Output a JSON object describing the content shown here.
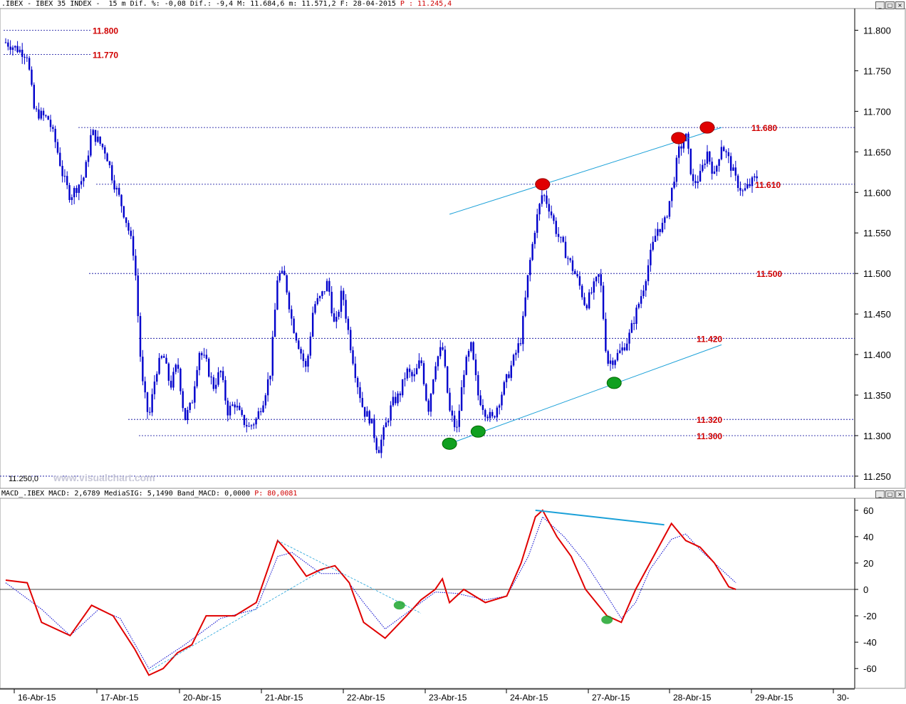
{
  "header": {
    "text": ".IBEX - IBEX 35 INDEX -  15 m Dif. %: -0,08 Dif.: -9,4 M: 11.684,6 m: 11.571,2 F: 28-04-2015 ",
    "red_text": "P : 11.245,4",
    "buttons": [
      "_",
      "□",
      "×"
    ]
  },
  "macd_header": {
    "text": "MACD_.IBEX MACD: 2,6789 MediaSIG: 5,1490 Band_MACD: 0,0000 ",
    "red_text": "P: 80,0081",
    "buttons": [
      "_",
      "□",
      "×"
    ]
  },
  "watermark": "www.visualchart.com",
  "low_label": "11.250,0",
  "colors": {
    "candles": "#0000cc",
    "levels": "#000099",
    "level_labels": "#d00000",
    "trendlines": "#1aa0d8",
    "macd": "#e00000",
    "signal": "#0000cc",
    "top_marker": "#e00000",
    "bottom_marker": "#10a020"
  },
  "chart_data": [
    {
      "type": "candlestick",
      "title": "IBEX 35 INDEX 15 m",
      "ylim": [
        11235,
        11825
      ],
      "y_ticks": [
        "11.800",
        "11.750",
        "11.700",
        "11.650",
        "11.600",
        "11.550",
        "11.500",
        "11.450",
        "11.400",
        "11.350",
        "11.300",
        "11.250"
      ],
      "x_ticks": [
        "16-Abr-15",
        "17-Abr-15",
        "20-Abr-15",
        "21-Abr-15",
        "22-Abr-15",
        "23-Abr-15",
        "24-Abr-15",
        "27-Abr-15",
        "28-Abr-15",
        "29-Abr-15",
        "30-"
      ],
      "close_path": [
        [
          0,
          11785
        ],
        [
          3,
          11770
        ],
        [
          4,
          11700
        ],
        [
          6,
          11690
        ],
        [
          7,
          11660
        ],
        [
          8,
          11620
        ],
        [
          9,
          11595
        ],
        [
          11,
          11620
        ],
        [
          12,
          11675
        ],
        [
          14,
          11650
        ],
        [
          15,
          11615
        ],
        [
          16,
          11590
        ],
        [
          17,
          11560
        ],
        [
          18,
          11520
        ],
        [
          19,
          11370
        ],
        [
          20,
          11320
        ],
        [
          21,
          11380
        ],
        [
          22,
          11400
        ],
        [
          23,
          11360
        ],
        [
          24,
          11390
        ],
        [
          25,
          11320
        ],
        [
          26,
          11340
        ],
        [
          27,
          11405
        ],
        [
          28,
          11390
        ],
        [
          29,
          11360
        ],
        [
          30,
          11380
        ],
        [
          31,
          11330
        ],
        [
          32,
          11340
        ],
        [
          33,
          11320
        ],
        [
          34,
          11310
        ],
        [
          35,
          11320
        ],
        [
          36,
          11345
        ],
        [
          37,
          11380
        ],
        [
          38,
          11500
        ],
        [
          39,
          11495
        ],
        [
          40,
          11440
        ],
        [
          41,
          11410
        ],
        [
          42,
          11380
        ],
        [
          43,
          11460
        ],
        [
          44,
          11470
        ],
        [
          45,
          11490
        ],
        [
          46,
          11430
        ],
        [
          47,
          11480
        ],
        [
          48,
          11420
        ],
        [
          49,
          11370
        ],
        [
          50,
          11330
        ],
        [
          51,
          11320
        ],
        [
          52,
          11280
        ],
        [
          53,
          11310
        ],
        [
          54,
          11340
        ],
        [
          55,
          11350
        ],
        [
          56,
          11380
        ],
        [
          57,
          11370
        ],
        [
          58,
          11395
        ],
        [
          59,
          11330
        ],
        [
          60,
          11390
        ],
        [
          61,
          11410
        ],
        [
          62,
          11330
        ],
        [
          63,
          11305
        ],
        [
          64,
          11380
        ],
        [
          65,
          11410
        ],
        [
          66,
          11350
        ],
        [
          67,
          11330
        ],
        [
          68,
          11320
        ],
        [
          69,
          11345
        ],
        [
          70,
          11370
        ],
        [
          71,
          11395
        ],
        [
          72,
          11420
        ],
        [
          73,
          11500
        ],
        [
          74,
          11560
        ],
        [
          75,
          11600
        ],
        [
          76,
          11580
        ],
        [
          77,
          11550
        ],
        [
          78,
          11530
        ],
        [
          79,
          11510
        ],
        [
          80,
          11490
        ],
        [
          81,
          11460
        ],
        [
          82,
          11480
        ],
        [
          83,
          11500
        ],
        [
          84,
          11390
        ],
        [
          85,
          11395
        ],
        [
          86,
          11405
        ],
        [
          87,
          11420
        ],
        [
          88,
          11450
        ],
        [
          89,
          11480
        ],
        [
          90,
          11520
        ],
        [
          91,
          11555
        ],
        [
          92,
          11560
        ],
        [
          93,
          11600
        ],
        [
          94,
          11650
        ],
        [
          95,
          11670
        ],
        [
          96,
          11610
        ],
        [
          97,
          11620
        ],
        [
          98,
          11650
        ],
        [
          99,
          11620
        ],
        [
          100,
          11660
        ],
        [
          101,
          11640
        ],
        [
          102,
          11615
        ],
        [
          103,
          11600
        ],
        [
          104,
          11610
        ],
        [
          105,
          11620
        ]
      ],
      "levels": [
        {
          "label": "11.800",
          "value": 11800
        },
        {
          "label": "11.770",
          "value": 11770
        },
        {
          "label": "11.680",
          "value": 11680
        },
        {
          "label": "11.610",
          "value": 11610
        },
        {
          "label": "11.500",
          "value": 11500
        },
        {
          "label": "11.420",
          "value": 11420
        },
        {
          "label": "11.320",
          "value": 11320
        },
        {
          "label": "11.300",
          "value": 11300
        }
      ],
      "trendlines": [
        {
          "from": [
            62,
            11573
          ],
          "to": [
            100,
            11680
          ]
        },
        {
          "from": [
            62,
            11290
          ],
          "to": [
            100,
            11412
          ]
        }
      ],
      "top_markers": [
        [
          75,
          11610
        ],
        [
          94,
          11667
        ],
        [
          98,
          11680
        ]
      ],
      "bottom_markers": [
        [
          62,
          11290
        ],
        [
          66,
          11305
        ],
        [
          85,
          11365
        ]
      ]
    },
    {
      "type": "line",
      "title": "MACD",
      "ylim": [
        -75,
        68
      ],
      "y_ticks": [
        "60",
        "40",
        "20",
        "0",
        "-20",
        "-40",
        "-60"
      ],
      "series": [
        {
          "name": "MACD",
          "values": [
            [
              0,
              7
            ],
            [
              3,
              5
            ],
            [
              5,
              -25
            ],
            [
              9,
              -35
            ],
            [
              12,
              -12
            ],
            [
              15,
              -20
            ],
            [
              18,
              -45
            ],
            [
              20,
              -65
            ],
            [
              22,
              -60
            ],
            [
              24,
              -48
            ],
            [
              26,
              -42
            ],
            [
              28,
              -20
            ],
            [
              32,
              -20
            ],
            [
              35,
              -10
            ],
            [
              38,
              37
            ],
            [
              40,
              25
            ],
            [
              42,
              10
            ],
            [
              44,
              15
            ],
            [
              46,
              18
            ],
            [
              48,
              5
            ],
            [
              50,
              -25
            ],
            [
              53,
              -37
            ],
            [
              56,
              -20
            ],
            [
              58,
              -8
            ],
            [
              60,
              0
            ],
            [
              61,
              8
            ],
            [
              62,
              -10
            ],
            [
              64,
              0
            ],
            [
              67,
              -10
            ],
            [
              70,
              -5
            ],
            [
              72,
              20
            ],
            [
              74,
              55
            ],
            [
              75,
              60
            ],
            [
              77,
              40
            ],
            [
              79,
              25
            ],
            [
              81,
              0
            ],
            [
              84,
              -20
            ],
            [
              86,
              -25
            ],
            [
              88,
              0
            ],
            [
              90,
              20
            ],
            [
              92,
              40
            ],
            [
              93,
              50
            ],
            [
              95,
              37
            ],
            [
              97,
              32
            ],
            [
              99,
              20
            ],
            [
              101,
              2
            ],
            [
              102,
              0
            ]
          ]
        },
        {
          "name": "MediaSIG",
          "values": [
            [
              0,
              5
            ],
            [
              5,
              -15
            ],
            [
              9,
              -35
            ],
            [
              13,
              -15
            ],
            [
              16,
              -22
            ],
            [
              20,
              -60
            ],
            [
              25,
              -42
            ],
            [
              30,
              -22
            ],
            [
              35,
              -15
            ],
            [
              38,
              25
            ],
            [
              40,
              28
            ],
            [
              44,
              12
            ],
            [
              47,
              12
            ],
            [
              50,
              -10
            ],
            [
              53,
              -30
            ],
            [
              56,
              -18
            ],
            [
              60,
              -2
            ],
            [
              63,
              -3
            ],
            [
              67,
              -8
            ],
            [
              70,
              -5
            ],
            [
              73,
              25
            ],
            [
              75,
              55
            ],
            [
              78,
              40
            ],
            [
              81,
              20
            ],
            [
              84,
              -5
            ],
            [
              86,
              -22
            ],
            [
              88,
              -10
            ],
            [
              90,
              15
            ],
            [
              93,
              38
            ],
            [
              95,
              42
            ],
            [
              97,
              30
            ],
            [
              100,
              15
            ],
            [
              102,
              5
            ]
          ]
        }
      ]
    }
  ]
}
